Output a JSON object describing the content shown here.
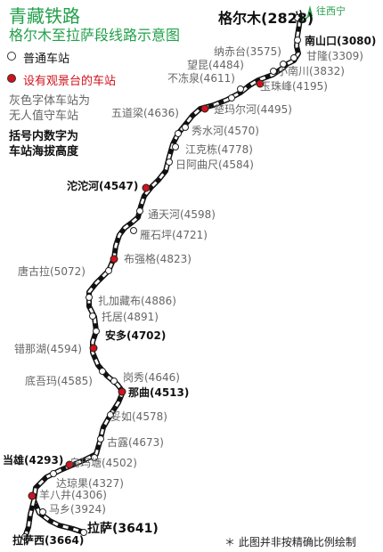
{
  "title": "青藏铁路",
  "subtitle": "格尔木至拉萨段线路示意图",
  "destination_label": "往西宁",
  "legend": {
    "normal": "普通车站",
    "viewing": "设有观景台的车站"
  },
  "notes": {
    "gray_line1": "灰色字体车站为",
    "gray_line2": "无人值守车站",
    "alt_line1": "括号内数字为",
    "alt_line2": "车站海拔高度"
  },
  "footnote": "＊ 此图并非按精确比例绘制",
  "colors": {
    "title": "#22a04a",
    "viewing_red": "#d0121b",
    "unmanned_gray": "#666666",
    "manned_black": "#111111",
    "track": "#111111"
  },
  "stations": [
    {
      "name": "格尔木(2828)",
      "type": "normal",
      "status": "major"
    },
    {
      "name": "南山口(3080)",
      "type": "normal",
      "status": "manned"
    },
    {
      "name": "甘隆(3309)",
      "type": "normal",
      "status": "unmanned"
    },
    {
      "name": "纳赤台(3575)",
      "type": "normal",
      "status": "unmanned"
    },
    {
      "name": "小南川(3832)",
      "type": "normal",
      "status": "unmanned"
    },
    {
      "name": "望昆(4484)",
      "type": "normal",
      "status": "unmanned"
    },
    {
      "name": "玉珠峰(4195)",
      "type": "viewing",
      "status": "unmanned"
    },
    {
      "name": "不冻泉(4611)",
      "type": "normal",
      "status": "unmanned"
    },
    {
      "name": "楚玛尔河(4495)",
      "type": "viewing",
      "status": "unmanned"
    },
    {
      "name": "五道梁(4636)",
      "type": "normal",
      "status": "unmanned"
    },
    {
      "name": "秀水河(4570)",
      "type": "normal",
      "status": "unmanned"
    },
    {
      "name": "江克栋(4778)",
      "type": "normal",
      "status": "unmanned"
    },
    {
      "name": "日阿曲尺(4584)",
      "type": "normal",
      "status": "unmanned"
    },
    {
      "name": "沱沱河(4547)",
      "type": "viewing",
      "status": "manned"
    },
    {
      "name": "通天河(4598)",
      "type": "normal",
      "status": "unmanned"
    },
    {
      "name": "雁石坪(4721)",
      "type": "normal",
      "status": "unmanned"
    },
    {
      "name": "布强格(4823)",
      "type": "viewing",
      "status": "unmanned"
    },
    {
      "name": "唐古拉(5072)",
      "type": "normal",
      "status": "unmanned"
    },
    {
      "name": "扎加藏布(4886)",
      "type": "normal",
      "status": "unmanned"
    },
    {
      "name": "托居(4891)",
      "type": "normal",
      "status": "unmanned"
    },
    {
      "name": "安多(4702)",
      "type": "normal",
      "status": "manned"
    },
    {
      "name": "错那湖(4594)",
      "type": "viewing",
      "status": "unmanned"
    },
    {
      "name": "底吾玛(4585)",
      "type": "normal",
      "status": "unmanned"
    },
    {
      "name": "岗秀(4646)",
      "type": "normal",
      "status": "unmanned"
    },
    {
      "name": "那曲(4513)",
      "type": "viewing",
      "status": "manned"
    },
    {
      "name": "妥如(4578)",
      "type": "normal",
      "status": "unmanned"
    },
    {
      "name": "古露(4673)",
      "type": "normal",
      "status": "unmanned"
    },
    {
      "name": "乌玛塘(4502)",
      "type": "normal",
      "status": "unmanned"
    },
    {
      "name": "当雄(4293)",
      "type": "viewing",
      "status": "manned"
    },
    {
      "name": "达琼果(4327)",
      "type": "normal",
      "status": "unmanned"
    },
    {
      "name": "羊八井(4306)",
      "type": "viewing",
      "status": "unmanned"
    },
    {
      "name": "马乡(3924)",
      "type": "normal",
      "status": "unmanned"
    },
    {
      "name": "拉萨(3641)",
      "type": "normal",
      "status": "major"
    },
    {
      "name": "拉萨西(3664)",
      "type": "normal",
      "status": "manned"
    }
  ]
}
